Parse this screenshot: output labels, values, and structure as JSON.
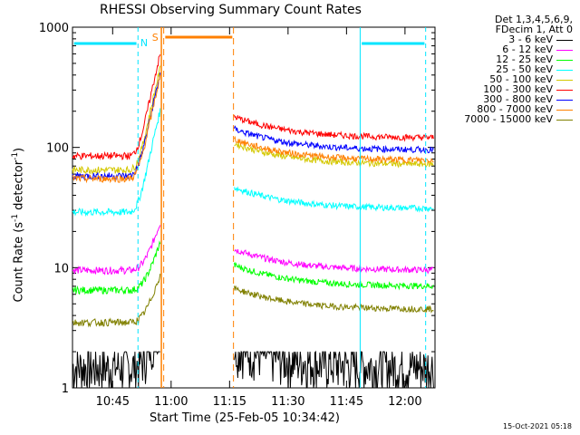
{
  "chart_data": {
    "type": "line",
    "title": "RHESSI Observing Summary Count Rates",
    "xlabel": "Start Time (25-Feb-05 10:34:42)",
    "ylabel_main": "Count Rate (s",
    "ylabel_sup1": "-1",
    "ylabel_mid": " detector",
    "ylabel_sup2": "-1",
    "ylabel_end": ")",
    "yscale": "log",
    "ylim": [
      1,
      1000
    ],
    "xlim_minutes": [
      0,
      93
    ],
    "x_ticks": [
      "10:45",
      "11:00",
      "11:15",
      "11:30",
      "11:45",
      "12:00"
    ],
    "x_tick_minutes": [
      10.3,
      25.3,
      40.3,
      55.3,
      70.3,
      85.3
    ],
    "y_ticks": [
      "1",
      "10",
      "100",
      "1000"
    ],
    "y_tick_values": [
      1,
      10,
      100,
      1000
    ],
    "legend_header": [
      "Det 1,3,4,5,6,9,",
      "FDecim 1, Att 0"
    ],
    "series": [
      {
        "name": "3 - 6 keV",
        "color": "#000000",
        "pre": 1.5,
        "post": 1.5,
        "noisy": true
      },
      {
        "name": "6 - 12 keV",
        "color": "#ff00ff",
        "pre": 9.5,
        "post": 9.5
      },
      {
        "name": "12 - 25 keV",
        "color": "#00ff00",
        "pre": 6.5,
        "post": 7.0
      },
      {
        "name": "25 - 50 keV",
        "color": "#00ffff",
        "pre": 29,
        "post": 31
      },
      {
        "name": "50 - 100 keV",
        "color": "#d4c800",
        "pre": 65,
        "post": 72
      },
      {
        "name": "100 - 300 keV",
        "color": "#ff0000",
        "pre": 85,
        "post": 120
      },
      {
        "name": "300 - 800 keV",
        "color": "#0000ff",
        "pre": 58,
        "post": 95
      },
      {
        "name": "800 - 7000 keV",
        "color": "#ff8000",
        "pre": 55,
        "post": 78
      },
      {
        "name": "7000 - 15000 keV",
        "color": "#808000",
        "pre": 3.5,
        "post": 4.5
      }
    ],
    "annotations": {
      "saa_label": "S",
      "night_label": "N"
    },
    "footer_date": "15-Oct-2021 05:18"
  }
}
